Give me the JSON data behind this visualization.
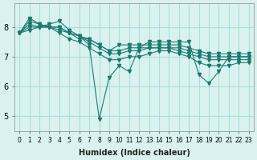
{
  "xlabel": "Humidex (Indice chaleur)",
  "ylabel": "",
  "bg_color": "#d9f2f0",
  "grid_color": "#aaddda",
  "line_color": "#1a7a6e",
  "xlim": [
    -0.5,
    23.5
  ],
  "ylim": [
    4.5,
    8.8
  ],
  "yticks": [
    5,
    6,
    7,
    8
  ],
  "xtick_labels": [
    "0",
    "1",
    "2",
    "3",
    "4",
    "5",
    "6",
    "7",
    "8",
    "9",
    "10",
    "11",
    "12",
    "13",
    "14",
    "15",
    "16",
    "17",
    "18",
    "19",
    "20",
    "21",
    "22",
    "23"
  ],
  "series": [
    [
      7.8,
      8.3,
      8.1,
      8.0,
      8.0,
      7.8,
      7.7,
      7.4,
      4.9,
      6.3,
      6.7,
      6.5,
      7.3,
      7.5,
      7.5,
      7.5,
      7.5,
      7.5,
      6.4,
      6.1,
      6.5,
      7.0,
      7.0,
      7.0
    ],
    [
      7.8,
      8.1,
      8.0,
      8.0,
      7.9,
      7.8,
      7.6,
      7.6,
      7.4,
      7.2,
      7.4,
      7.4,
      7.4,
      7.4,
      7.4,
      7.4,
      7.4,
      7.3,
      7.2,
      7.1,
      7.1,
      7.1,
      7.1,
      7.1
    ],
    [
      7.8,
      8.0,
      8.0,
      8.1,
      8.2,
      7.9,
      7.7,
      7.6,
      7.4,
      7.2,
      7.2,
      7.3,
      7.3,
      7.3,
      7.3,
      7.3,
      7.3,
      7.2,
      7.1,
      7.0,
      7.0,
      7.0,
      7.0,
      7.0
    ],
    [
      7.8,
      7.9,
      8.0,
      8.0,
      8.0,
      7.8,
      7.7,
      7.5,
      7.3,
      7.1,
      7.1,
      7.2,
      7.2,
      7.3,
      7.3,
      7.3,
      7.2,
      7.1,
      7.0,
      6.9,
      6.9,
      6.9,
      6.9,
      6.9
    ],
    [
      7.8,
      8.2,
      8.1,
      8.0,
      7.8,
      7.6,
      7.5,
      7.3,
      7.1,
      6.9,
      6.9,
      7.0,
      7.0,
      7.1,
      7.2,
      7.2,
      7.1,
      7.0,
      6.8,
      6.7,
      6.7,
      6.7,
      6.8,
      6.8
    ]
  ]
}
